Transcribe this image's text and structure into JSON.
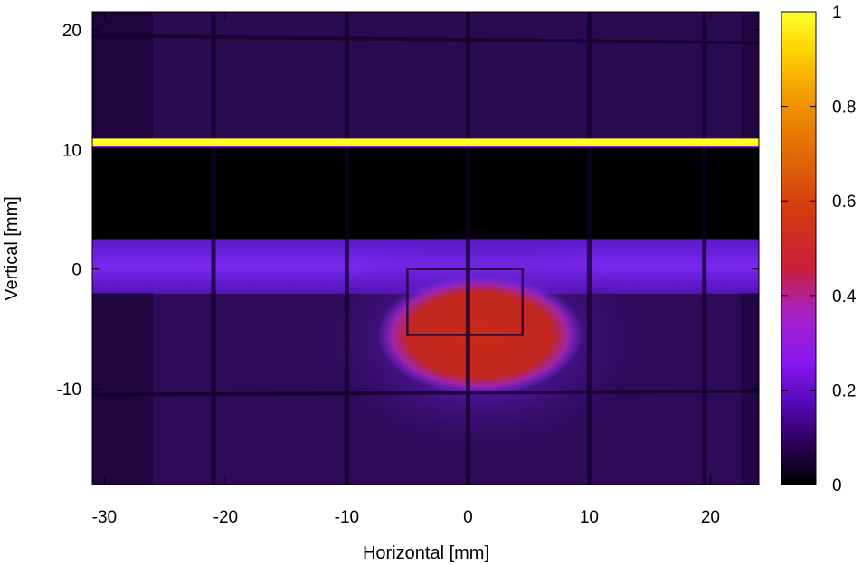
{
  "chart_data": {
    "type": "heatmap",
    "title": "",
    "xlabel": "Horizontal [mm]",
    "ylabel": "Vertical [mm]",
    "xlim": [
      -31,
      24
    ],
    "ylim": [
      -18,
      21.5
    ],
    "x_ticks": [
      {
        "value": -30,
        "label": "-30"
      },
      {
        "value": -20,
        "label": "-20"
      },
      {
        "value": -10,
        "label": "-10"
      },
      {
        "value": 0,
        "label": "0"
      },
      {
        "value": 10,
        "label": "10"
      },
      {
        "value": 20,
        "label": "20"
      }
    ],
    "y_ticks": [
      {
        "value": 20,
        "label": "20"
      },
      {
        "value": 10,
        "label": "10"
      },
      {
        "value": 0,
        "label": "0"
      },
      {
        "value": -10,
        "label": "-10"
      }
    ],
    "colorbar": {
      "range": [
        0,
        1
      ],
      "ticks": [
        {
          "value": 1,
          "label": "1"
        },
        {
          "value": 0.8,
          "label": "0.8"
        },
        {
          "value": 0.6,
          "label": "0.6"
        },
        {
          "value": 0.4,
          "label": "0.4"
        },
        {
          "value": 0.2,
          "label": "0.2"
        },
        {
          "value": 0,
          "label": "0"
        }
      ],
      "colormap": [
        "#000000",
        "#1a0030",
        "#3d007a",
        "#6a10d8",
        "#8a18f0",
        "#a020d0",
        "#c8203a",
        "#d83810",
        "#e86a08",
        "#f5a000",
        "#ffe000",
        "#ffff40"
      ]
    },
    "regions": [
      {
        "label": "background upper",
        "x": [
          -31,
          24
        ],
        "y": [
          10.5,
          21.5
        ],
        "value": 0.08
      },
      {
        "label": "bright line",
        "x": [
          -31,
          24
        ],
        "y": [
          10.3,
          10.9
        ],
        "value": 1.0
      },
      {
        "label": "dark band",
        "x": [
          -31,
          24
        ],
        "y": [
          2.5,
          10.3
        ],
        "value": 0.0
      },
      {
        "label": "horizontal band",
        "x": [
          -31,
          24
        ],
        "y": [
          -2,
          2.5
        ],
        "value": 0.25
      },
      {
        "label": "background lower",
        "x": [
          -31,
          24
        ],
        "y": [
          -18,
          -2
        ],
        "value": 0.09
      },
      {
        "label": "central spot",
        "center": [
          1,
          -5.5
        ],
        "radii": [
          8.5,
          5
        ],
        "value": 0.55
      }
    ],
    "grid_lines_x": [
      -21,
      -10,
      0,
      10,
      19.5
    ],
    "grid_lines_y": [
      19.5,
      -10.5
    ]
  }
}
